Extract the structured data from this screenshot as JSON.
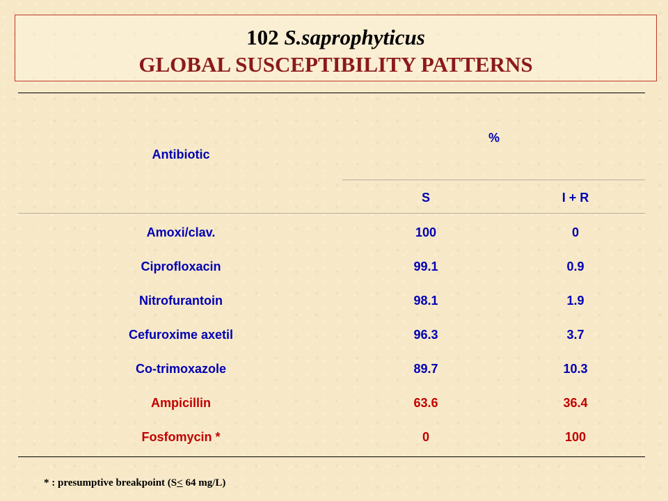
{
  "title": {
    "number": "102",
    "organism": "S.saprophyticus",
    "subtitle": "GLOBAL SUSCEPTIBILITY PATTERNS"
  },
  "table": {
    "headers": {
      "antibiotic": "Antibiotic",
      "percent": "%",
      "s": "S",
      "ir": "I + R"
    },
    "rows": [
      {
        "antibiotic": "Amoxi/clav.",
        "s": "100",
        "ir": "0",
        "color": "#0000b3"
      },
      {
        "antibiotic": "Ciprofloxacin",
        "s": "99.1",
        "ir": "0.9",
        "color": "#0000b3"
      },
      {
        "antibiotic": "Nitrofurantoin",
        "s": "98.1",
        "ir": "1.9",
        "color": "#0000b3"
      },
      {
        "antibiotic": "Cefuroxime axetil",
        "s": "96.3",
        "ir": "3.7",
        "color": "#0000b3"
      },
      {
        "antibiotic": "Co-trimoxazole",
        "s": "89.7",
        "ir": "10.3",
        "color": "#0000b3"
      },
      {
        "antibiotic": "Ampicillin",
        "s": "63.6",
        "ir": "36.4",
        "color": "#c00000"
      },
      {
        "antibiotic": "Fosfomycin *",
        "s": "0",
        "ir": "100",
        "color": "#c00000"
      }
    ]
  },
  "footnote": {
    "prefix": "* : presumptive breakpoint (S",
    "symbol": "<",
    "suffix": " 64 mg/L)"
  },
  "colors": {
    "header_blue": "#0000b3",
    "resistant_red": "#c00000",
    "title_red": "#8b1a1a",
    "background": "#f7e9c8"
  }
}
